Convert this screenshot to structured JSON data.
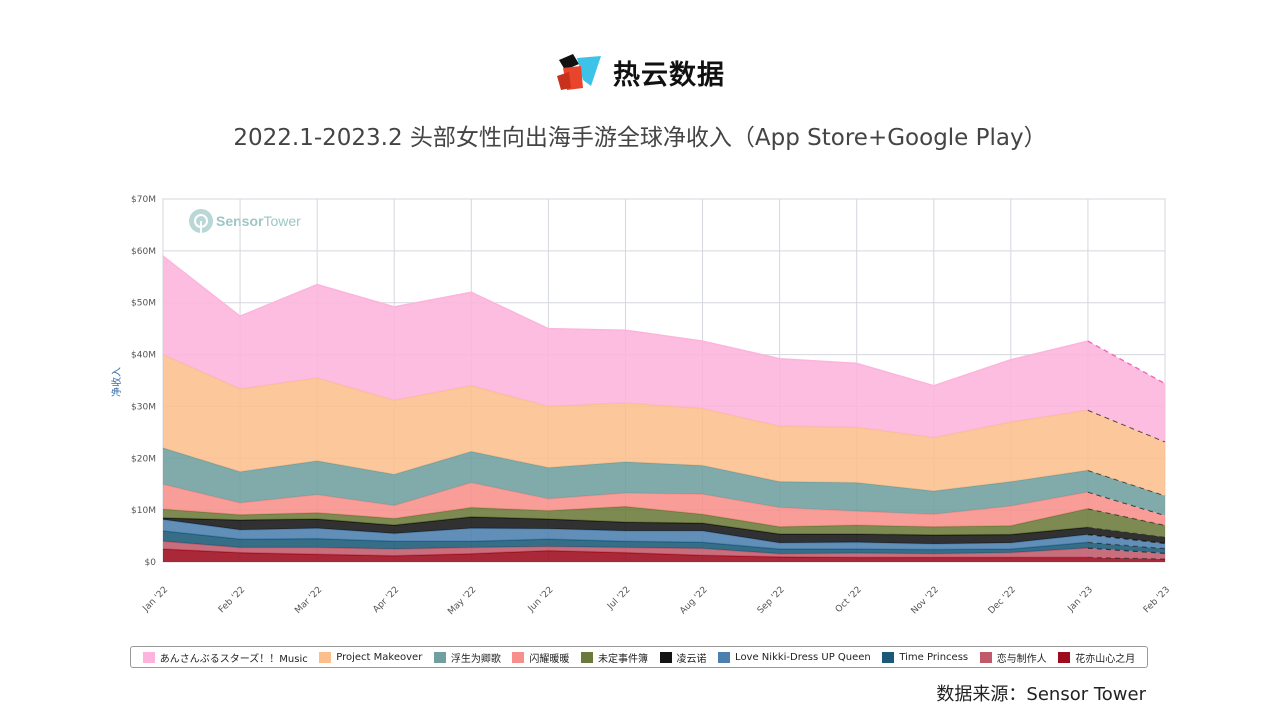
{
  "brand": {
    "name": "热云数据",
    "colors": [
      "#111111",
      "#e8452c",
      "#3ec3e8"
    ]
  },
  "title": "2022.1-2023.2 头部女性向出海手游全球净收入（App Store+Google Play）",
  "watermark": {
    "name": "SensorTower",
    "part1": "Sensor",
    "part2": "Tower",
    "icon": "sensor-tower-logo-icon"
  },
  "source": "数据来源：Sensor Tower",
  "chart_data": {
    "type": "area",
    "stacked": true,
    "title": "2022.1-2023.2 头部女性向出海手游全球净收入（App Store+Google Play）",
    "ylabel": "净收入",
    "xlabel": "",
    "ylim": [
      0,
      70
    ],
    "y_unit": "M",
    "y_ticks": [
      "$0",
      "$10M",
      "$20M",
      "$30M",
      "$40M",
      "$50M",
      "$60M",
      "$70M"
    ],
    "grid": true,
    "legend_position": "bottom",
    "projected_from_index": 12,
    "categories": [
      "Jan '22",
      "Feb '22",
      "Mar '22",
      "Apr '22",
      "May '22",
      "Jun '22",
      "Jul '22",
      "Aug '22",
      "Sep '22",
      "Oct '22",
      "Nov '22",
      "Dec '22",
      "Jan '23",
      "Feb '23"
    ],
    "series": [
      {
        "name": "花亦山心之月",
        "color": "#9e0b1c",
        "values": [
          2.5,
          1.8,
          1.5,
          1.2,
          1.6,
          2.2,
          1.8,
          1.3,
          1.0,
          0.9,
          0.9,
          0.9,
          0.9,
          0.6
        ]
      },
      {
        "name": "恋与制作人",
        "color": "#c05a6a",
        "values": [
          1.5,
          1.0,
          1.3,
          1.3,
          1.2,
          0.8,
          1.0,
          1.3,
          0.6,
          0.8,
          0.7,
          0.9,
          1.8,
          1.1
        ]
      },
      {
        "name": "Time Princess",
        "color": "#1a5a78",
        "values": [
          2.0,
          1.6,
          1.7,
          1.5,
          1.2,
          1.4,
          1.2,
          1.2,
          0.9,
          0.8,
          0.8,
          0.7,
          1.1,
          0.9
        ]
      },
      {
        "name": "Love Nikki-Dress UP Queen",
        "color": "#4b7fae",
        "values": [
          2.2,
          1.8,
          2.0,
          1.5,
          2.5,
          2.0,
          2.0,
          2.2,
          1.2,
          1.3,
          1.1,
          1.2,
          1.5,
          1.0
        ]
      },
      {
        "name": "凌云诺",
        "color": "#141414",
        "values": [
          0.3,
          1.9,
          1.8,
          1.6,
          2.2,
          1.9,
          1.7,
          1.5,
          1.7,
          1.6,
          1.7,
          1.6,
          1.4,
          1.2
        ]
      },
      {
        "name": "未定事件簿",
        "color": "#6b7a3a",
        "values": [
          1.7,
          1.0,
          1.2,
          1.3,
          1.8,
          1.6,
          3.0,
          1.7,
          1.4,
          1.7,
          1.6,
          1.7,
          3.6,
          2.3
        ]
      },
      {
        "name": "闪耀暖暖",
        "color": "#f78f8a",
        "values": [
          4.8,
          2.3,
          3.5,
          2.5,
          4.8,
          2.3,
          2.6,
          3.9,
          3.7,
          2.7,
          2.4,
          3.8,
          3.2,
          1.9
        ]
      },
      {
        "name": "浮生为卿歌",
        "color": "#6f9f9e",
        "values": [
          7.0,
          6.0,
          6.5,
          6.0,
          6.0,
          6.0,
          6.0,
          5.5,
          5.0,
          5.5,
          4.5,
          4.7,
          4.2,
          3.8
        ]
      },
      {
        "name": "Project Makeover",
        "color": "#fcbf8c",
        "values": [
          18.0,
          16.0,
          16.0,
          14.3,
          12.7,
          11.8,
          11.4,
          11.0,
          10.7,
          10.7,
          10.3,
          11.5,
          11.6,
          10.4
        ]
      },
      {
        "name": "あんさんぶるスターズ！！Music",
        "color": "#fdb4dc",
        "values": [
          19.0,
          14.0,
          18.0,
          18.0,
          18.0,
          15.0,
          14.0,
          13.0,
          13.0,
          12.3,
          10.0,
          12.0,
          13.3,
          11.2
        ]
      }
    ]
  }
}
